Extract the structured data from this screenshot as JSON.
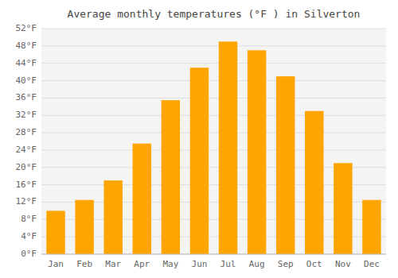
{
  "chart_data": {
    "type": "bar",
    "title": "Average monthly temperatures (°F ) in Silverton",
    "categories": [
      "Jan",
      "Feb",
      "Mar",
      "Apr",
      "May",
      "Jun",
      "Jul",
      "Aug",
      "Sep",
      "Oct",
      "Nov",
      "Dec"
    ],
    "values": [
      10,
      12.5,
      17,
      25.5,
      35.5,
      43,
      49,
      47,
      41,
      33,
      21,
      12.5
    ],
    "color": "#FFA500",
    "ylim": [
      0,
      52
    ],
    "yticks": [
      {
        "value": 0,
        "label": "0°F"
      },
      {
        "value": 4,
        "label": "4°F"
      },
      {
        "value": 8,
        "label": "8°F"
      },
      {
        "value": 12,
        "label": "12°F"
      },
      {
        "value": 16,
        "label": "16°F"
      },
      {
        "value": 20,
        "label": "20°F"
      },
      {
        "value": 24,
        "label": "24°F"
      },
      {
        "value": 28,
        "label": "28°F"
      },
      {
        "value": 32,
        "label": "32°F"
      },
      {
        "value": 36,
        "label": "36°F"
      },
      {
        "value": 40,
        "label": "40°F"
      },
      {
        "value": 44,
        "label": "44°F"
      },
      {
        "value": 48,
        "label": "48°F"
      },
      {
        "value": 52,
        "label": "52°F"
      }
    ],
    "grid": true
  }
}
